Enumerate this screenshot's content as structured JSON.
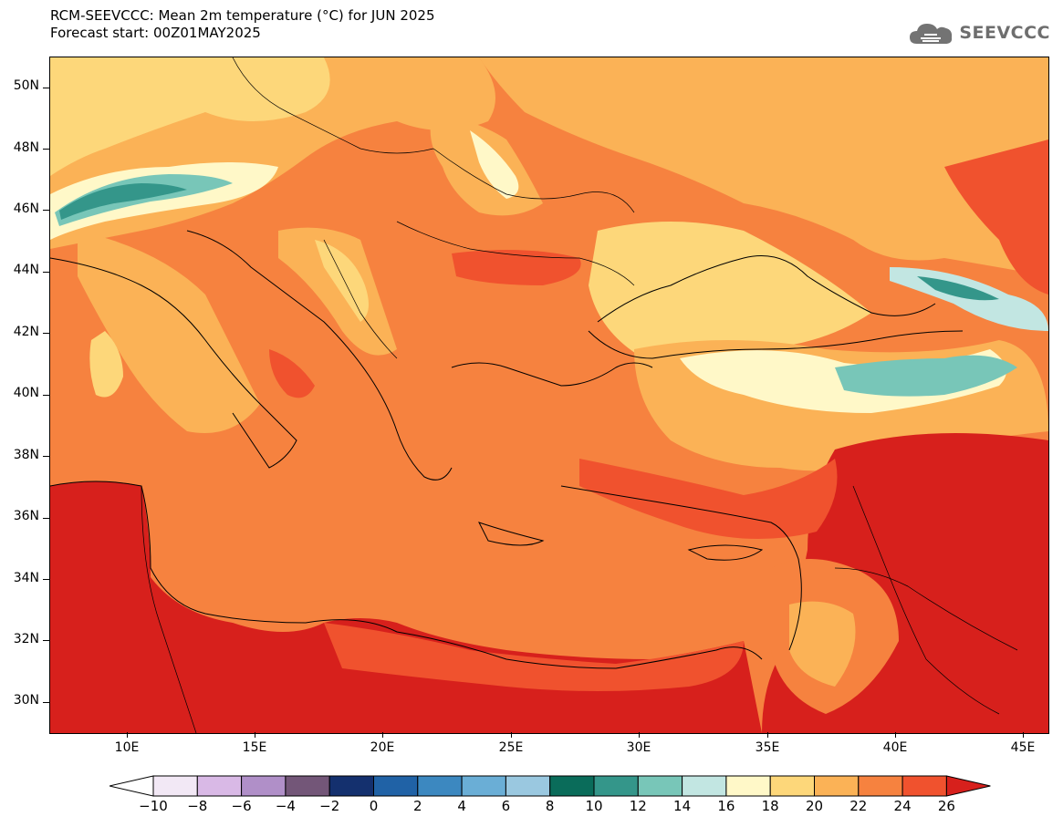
{
  "header": {
    "title_line1": "RCM-SEEVCCC: Mean 2m temperature (°C) for JUN 2025",
    "title_line2": "Forecast start: 00Z01MAY2025"
  },
  "logo": {
    "text": "SEEVCCC",
    "icon": "cloud-logo-icon"
  },
  "map": {
    "lat_labels": [
      "50N",
      "48N",
      "46N",
      "44N",
      "42N",
      "40N",
      "38N",
      "36N",
      "34N",
      "32N",
      "30N"
    ],
    "lon_labels": [
      "10E",
      "15E",
      "20E",
      "25E",
      "30E",
      "35E",
      "40E",
      "45E"
    ],
    "base_color": "#f6823f",
    "sea_color": "#f6823f"
  },
  "colorbar": {
    "labels": [
      "−10",
      "−8",
      "−6",
      "−4",
      "−2",
      "0",
      "2",
      "4",
      "6",
      "8",
      "10",
      "12",
      "14",
      "16",
      "18",
      "20",
      "22",
      "24",
      "26"
    ],
    "colors": [
      "#f2e8f5",
      "#d9b9e6",
      "#b08fc8",
      "#735678",
      "#14306e",
      "#2062a6",
      "#3c88c0",
      "#6aaed6",
      "#9ac8e0",
      "#0a6c5a",
      "#34968a",
      "#78c6b8",
      "#c2e6e2",
      "#fff8c8",
      "#fdd77a",
      "#fbb256",
      "#f6823f",
      "#f0522e",
      "#d7201c"
    ]
  }
}
